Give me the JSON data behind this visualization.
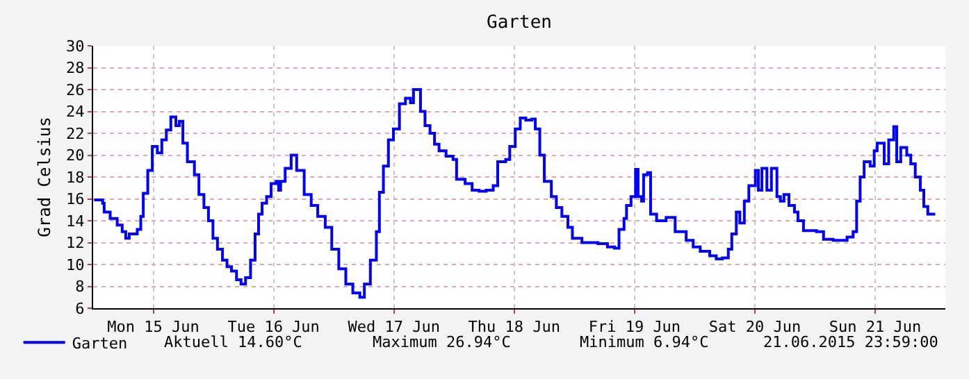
{
  "chart_data": {
    "type": "step",
    "title": "Garten",
    "ylabel": "Grad Celsius",
    "x": [
      "2015-06-15T00:12",
      "2015-06-15T01:54",
      "2015-06-15T02:12",
      "2015-06-15T03:24",
      "2015-06-15T04:48",
      "2015-06-15T05:48",
      "2015-06-15T06:30",
      "2015-06-15T07:12",
      "2015-06-15T08:48",
      "2015-06-15T09:30",
      "2015-06-15T10:00",
      "2015-06-15T10:54",
      "2015-06-15T11:48",
      "2015-06-15T12:48",
      "2015-06-15T13:42",
      "2015-06-15T14:36",
      "2015-06-15T15:30",
      "2015-06-15T16:30",
      "2015-06-15T17:12",
      "2015-06-15T17:54",
      "2015-06-15T18:48",
      "2015-06-15T20:12",
      "2015-06-15T21:06",
      "2015-06-15T22:06",
      "2015-06-15T23:00",
      "2015-06-15T23:54",
      "2015-06-16T00:48",
      "2015-06-16T01:48",
      "2015-06-16T02:42",
      "2015-06-16T03:36",
      "2015-06-16T04:36",
      "2015-06-16T05:30",
      "2015-06-16T06:24",
      "2015-06-16T07:24",
      "2015-06-16T08:18",
      "2015-06-16T09:00",
      "2015-06-16T09:42",
      "2015-06-16T10:36",
      "2015-06-16T11:30",
      "2015-06-16T12:30",
      "2015-06-16T13:00",
      "2015-06-16T13:24",
      "2015-06-16T14:18",
      "2015-06-16T15:30",
      "2015-06-16T16:36",
      "2015-06-16T18:06",
      "2015-06-16T19:30",
      "2015-06-16T20:48",
      "2015-06-16T22:18",
      "2015-06-16T23:36",
      "2015-06-17T01:00",
      "2015-06-17T02:24",
      "2015-06-17T03:48",
      "2015-06-17T05:12",
      "2015-06-17T06:06",
      "2015-06-17T07:18",
      "2015-06-17T08:30",
      "2015-06-17T09:06",
      "2015-06-17T09:54",
      "2015-06-17T10:54",
      "2015-06-17T11:54",
      "2015-06-17T13:06",
      "2015-06-17T14:18",
      "2015-06-17T15:18",
      "2015-06-17T15:54",
      "2015-06-17T16:42",
      "2015-06-17T17:18",
      "2015-06-17T18:12",
      "2015-06-17T19:12",
      "2015-06-17T20:06",
      "2015-06-17T21:00",
      "2015-06-17T22:24",
      "2015-06-17T23:48",
      "2015-06-18T00:30",
      "2015-06-18T02:12",
      "2015-06-18T03:36",
      "2015-06-18T05:00",
      "2015-06-18T06:24",
      "2015-06-18T07:48",
      "2015-06-18T08:42",
      "2015-06-18T10:18",
      "2015-06-18T11:06",
      "2015-06-18T12:12",
      "2015-06-18T13:12",
      "2015-06-18T14:18",
      "2015-06-18T15:30",
      "2015-06-18T16:12",
      "2015-06-18T17:06",
      "2015-06-18T18:00",
      "2015-06-18T19:24",
      "2015-06-18T20:24",
      "2015-06-18T21:30",
      "2015-06-18T22:42",
      "2015-06-18T23:36",
      "2015-06-19T01:30",
      "2015-06-19T04:42",
      "2015-06-19T06:36",
      "2015-06-19T08:00",
      "2015-06-19T08:54",
      "2015-06-19T09:54",
      "2015-06-19T10:24",
      "2015-06-19T11:18",
      "2015-06-19T12:12",
      "2015-06-19T12:42",
      "2015-06-19T13:24",
      "2015-06-19T13:48",
      "2015-06-19T14:36",
      "2015-06-19T15:12",
      "2015-06-19T16:24",
      "2015-06-19T18:18",
      "2015-06-19T20:06",
      "2015-06-19T22:18",
      "2015-06-19T23:42",
      "2015-06-20T01:06",
      "2015-06-20T03:00",
      "2015-06-20T04:18",
      "2015-06-20T05:30",
      "2015-06-20T06:42",
      "2015-06-20T07:24",
      "2015-06-20T08:18",
      "2015-06-20T09:00",
      "2015-06-20T09:54",
      "2015-06-20T10:48",
      "2015-06-20T12:06",
      "2015-06-20T12:42",
      "2015-06-20T13:24",
      "2015-06-20T14:24",
      "2015-06-20T15:18",
      "2015-06-20T16:24",
      "2015-06-20T17:06",
      "2015-06-20T17:48",
      "2015-06-20T18:48",
      "2015-06-20T19:54",
      "2015-06-20T20:36",
      "2015-06-20T21:42",
      "2015-06-21T00:18",
      "2015-06-21T01:42",
      "2015-06-21T03:36",
      "2015-06-21T05:00",
      "2015-06-21T06:24",
      "2015-06-21T07:36",
      "2015-06-21T08:18",
      "2015-06-21T09:00",
      "2015-06-21T09:48",
      "2015-06-21T11:00",
      "2015-06-21T11:48",
      "2015-06-21T12:24",
      "2015-06-21T13:48",
      "2015-06-21T14:42",
      "2015-06-21T15:42",
      "2015-06-21T16:18",
      "2015-06-21T17:06",
      "2015-06-21T18:18",
      "2015-06-21T19:06",
      "2015-06-21T20:00",
      "2015-06-21T21:00",
      "2015-06-21T21:42",
      "2015-06-21T22:30",
      "2015-06-21T23:59"
    ],
    "series": [
      {
        "name": "Garten",
        "color": "#0000ff",
        "values": [
          15.9,
          15.6,
          14.8,
          14.2,
          13.6,
          13.0,
          12.4,
          12.8,
          13.2,
          14.4,
          16.5,
          18.6,
          20.8,
          20.2,
          21.4,
          22.3,
          23.5,
          22.7,
          23.1,
          21.1,
          19.4,
          18.2,
          16.4,
          15.2,
          14.0,
          12.4,
          11.4,
          10.4,
          9.8,
          9.4,
          8.6,
          8.2,
          8.8,
          10.4,
          12.8,
          14.6,
          15.6,
          16.2,
          17.4,
          17.6,
          16.8,
          17.6,
          18.8,
          20.0,
          18.6,
          16.4,
          15.4,
          14.4,
          13.4,
          11.4,
          9.6,
          8.2,
          7.4,
          7.0,
          8.2,
          10.4,
          13.0,
          16.6,
          19.0,
          21.4,
          22.4,
          24.7,
          25.2,
          24.8,
          26.0,
          26.0,
          24.0,
          22.7,
          22.0,
          21.0,
          20.4,
          19.9,
          19.6,
          17.8,
          17.4,
          16.8,
          16.7,
          16.8,
          17.2,
          19.4,
          19.6,
          20.8,
          22.4,
          23.4,
          23.2,
          23.3,
          22.4,
          20.0,
          17.6,
          16.2,
          15.2,
          14.4,
          13.4,
          12.4,
          12.0,
          11.9,
          11.6,
          11.5,
          13.2,
          14.2,
          15.4,
          16.2,
          18.7,
          16.2,
          15.8,
          18.2,
          18.4,
          14.6,
          14.0,
          14.3,
          13.0,
          12.2,
          11.6,
          11.2,
          10.8,
          10.5,
          10.6,
          11.4,
          12.8,
          14.8,
          13.8,
          15.8,
          17.2,
          18.6,
          16.8,
          18.8,
          16.8,
          18.8,
          16.2,
          15.8,
          16.4,
          15.4,
          14.8,
          14.0,
          13.1,
          13.0,
          12.3,
          12.2,
          12.2,
          12.5,
          13.0,
          15.8,
          18.0,
          19.4,
          19.0,
          20.4,
          21.1,
          19.2,
          21.4,
          22.6,
          19.4,
          20.7,
          20.0,
          19.2,
          18.0,
          16.8,
          15.3,
          14.6,
          14.6
        ]
      }
    ],
    "xlim": [
      "2015-06-15T00:00",
      "2015-06-22T02:00"
    ],
    "xticks": [
      {
        "value": "2015-06-15T12:00",
        "label": "Mon 15 Jun"
      },
      {
        "value": "2015-06-16T12:00",
        "label": "Tue 16 Jun"
      },
      {
        "value": "2015-06-17T12:00",
        "label": "Wed 17 Jun"
      },
      {
        "value": "2015-06-18T12:00",
        "label": "Thu 18 Jun"
      },
      {
        "value": "2015-06-19T12:00",
        "label": "Fri 19 Jun"
      },
      {
        "value": "2015-06-20T12:00",
        "label": "Sat 20 Jun"
      },
      {
        "value": "2015-06-21T12:00",
        "label": "Sun 21 Jun"
      }
    ],
    "ylim": [
      6,
      30
    ],
    "yticks": [
      6,
      8,
      10,
      12,
      14,
      16,
      18,
      20,
      22,
      24,
      26,
      28,
      30
    ],
    "grid": true,
    "legend": "bottom left",
    "annotations": [
      "Aktuell 14.60°C",
      "Maximum 26.94°C",
      "Minimum 6.94°C",
      "21.06.2015 23:59:00"
    ]
  }
}
